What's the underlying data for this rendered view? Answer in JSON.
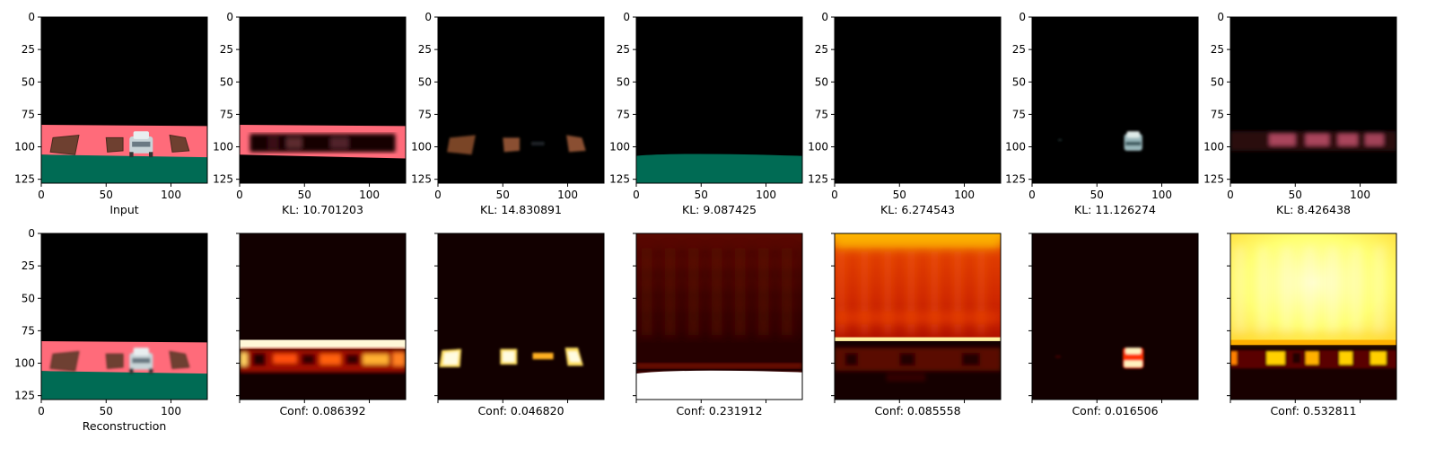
{
  "figure": {
    "type": "image-grid",
    "rows": 2,
    "cols": 7
  },
  "chart_data": {
    "type": "heatmap",
    "image_size": [
      128,
      128
    ],
    "xlim": [
      0,
      128
    ],
    "ylim": [
      128,
      0
    ],
    "x_ticks": [
      0,
      50,
      100
    ],
    "y_ticks": [
      0,
      25,
      50,
      75,
      100,
      125
    ],
    "top_row": [
      {
        "caption": "Input",
        "content": "scene"
      },
      {
        "caption": "KL: 10.701203",
        "content": "slot-wall"
      },
      {
        "caption": "KL: 14.830891",
        "content": "slot-boxes"
      },
      {
        "caption": "KL: 9.087425",
        "content": "slot-floor"
      },
      {
        "caption": "KL: 6.274543",
        "content": "slot-empty"
      },
      {
        "caption": "KL: 11.126274",
        "content": "slot-car"
      },
      {
        "caption": "KL: 8.426438",
        "content": "slot-faint"
      }
    ],
    "bottom_row": [
      {
        "caption": "Reconstruction",
        "content": "scene",
        "show_tick_labels": true
      },
      {
        "caption": "Conf: 0.086392",
        "content": "conf-wall",
        "show_tick_labels": false
      },
      {
        "caption": "Conf: 0.046820",
        "content": "conf-boxes",
        "show_tick_labels": false
      },
      {
        "caption": "Conf: 0.231912",
        "content": "conf-floor",
        "show_tick_labels": false
      },
      {
        "caption": "Conf: 0.085558",
        "content": "conf-background",
        "show_tick_labels": false
      },
      {
        "caption": "Conf: 0.016506",
        "content": "conf-car",
        "show_tick_labels": false
      },
      {
        "caption": "Conf: 0.532811",
        "content": "conf-sky",
        "show_tick_labels": false
      }
    ],
    "colors": {
      "wall": "#ff6b7a",
      "floor": "#006b54",
      "box": "#6e4030",
      "car": "#c8d4d8",
      "heat_low": "#120000",
      "heat_mid": "#c01800",
      "heat_high": "#ffff80"
    }
  }
}
